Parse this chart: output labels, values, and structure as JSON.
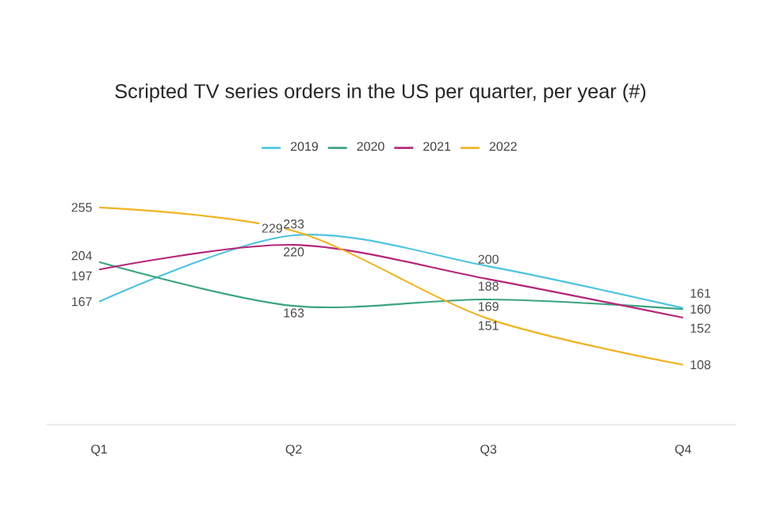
{
  "chart_data": {
    "type": "line",
    "title": "Scripted TV series orders in the US per quarter, per year (#)",
    "categories": [
      "Q1",
      "Q2",
      "Q3",
      "Q4"
    ],
    "series": [
      {
        "name": "2019",
        "color": "#4ec3e0",
        "values": [
          167,
          229,
          200,
          161
        ]
      },
      {
        "name": "2020",
        "color": "#3aa37f",
        "values": [
          204,
          163,
          169,
          160
        ]
      },
      {
        "name": "2021",
        "color": "#b5257a",
        "values": [
          197,
          220,
          188,
          152
        ]
      },
      {
        "name": "2022",
        "color": "#f0b323",
        "values": [
          255,
          233,
          151,
          108
        ]
      }
    ],
    "data_labels": true,
    "legend": "top",
    "grid": false
  }
}
